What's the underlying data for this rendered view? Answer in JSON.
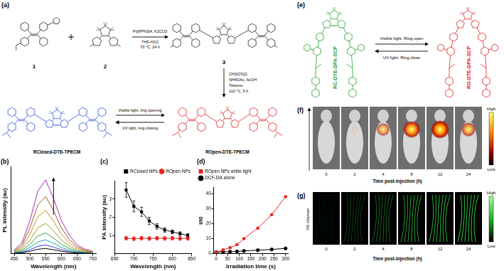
{
  "panels": {
    "a": {
      "label": "(a)",
      "compounds": [
        "1",
        "2",
        "3"
      ],
      "step1": {
        "above": [
          "Pd(PPh3)4, K2CO3"
        ],
        "below": [
          "THF-H2O",
          "70 °C, 24 h"
        ]
      },
      "step2": [
        "CH2(CN)2,",
        "NH4OAc, AcOH",
        "Toluene",
        "110 °C, 5 h"
      ],
      "closed": "RClosed-DTE-TPECM",
      "open": "ROpen-DTE-TPECM",
      "forward": "Visible light, ring opening",
      "backward": "UV light, ring closing"
    },
    "e": {
      "label": "(e)",
      "closed": "RC-DTE-DPA-SCP",
      "open": "RO-DTE-DPA-SCP",
      "forward": "Visible light, Ring open",
      "backward": "UV light, Ring close"
    },
    "f": {
      "label": "(f)",
      "times": [
        0,
        2,
        4,
        8,
        12,
        24
      ],
      "signal": [
        0,
        0.1,
        0.6,
        0.9,
        1.0,
        0.7
      ],
      "axis_title": "Time post-injection (h)",
      "high": "High",
      "low": "Low"
    },
    "g": {
      "label": "(g)",
      "channel": "PA channel",
      "times": [
        0,
        2,
        4,
        8,
        12,
        24
      ],
      "signal": [
        0.1,
        0.3,
        0.5,
        0.8,
        0.9,
        1.0
      ],
      "axis_title": "Time post-injection (h)",
      "high": "High",
      "low": "Low"
    }
  },
  "chart_data": [
    {
      "title": "(b)",
      "type": "line",
      "x": [
        450,
        475,
        500,
        525,
        550,
        575,
        600,
        625,
        650,
        675,
        700
      ],
      "series": [
        {
          "color": "#000000",
          "values": [
            0.03,
            0.09,
            0.27,
            0.51,
            0.6,
            0.45,
            0.27,
            0.15,
            0.07,
            0.04,
            0.02
          ]
        },
        {
          "color": "#3a3acf",
          "values": [
            0.05,
            0.15,
            0.45,
            0.85,
            1.0,
            0.75,
            0.45,
            0.25,
            0.12,
            0.06,
            0.03
          ]
        },
        {
          "color": "#1aa3a3",
          "values": [
            0.08,
            0.24,
            0.72,
            1.36,
            1.6,
            1.2,
            0.72,
            0.4,
            0.19,
            0.1,
            0.05
          ]
        },
        {
          "color": "#2e9e3e",
          "values": [
            0.12,
            0.36,
            1.08,
            2.04,
            2.4,
            1.8,
            1.08,
            0.6,
            0.29,
            0.14,
            0.07
          ]
        },
        {
          "color": "#8a9a2a",
          "values": [
            0.18,
            0.53,
            1.58,
            2.98,
            3.5,
            2.63,
            1.58,
            0.88,
            0.42,
            0.21,
            0.11
          ]
        },
        {
          "color": "#d08a1a",
          "values": [
            0.25,
            0.75,
            2.25,
            4.25,
            5.0,
            3.75,
            2.25,
            1.25,
            0.6,
            0.3,
            0.15
          ]
        },
        {
          "color": "#9a5a2a",
          "values": [
            0.33,
            0.99,
            2.97,
            5.61,
            6.6,
            4.95,
            2.97,
            1.65,
            0.79,
            0.4,
            0.2
          ]
        },
        {
          "color": "#a02ab0",
          "values": [
            0.43,
            1.28,
            3.83,
            7.23,
            8.5,
            6.38,
            3.83,
            2.13,
            1.02,
            0.51,
            0.26
          ]
        }
      ],
      "marker": "none",
      "xlim": [
        440,
        710
      ],
      "xticks": [
        450,
        500,
        550,
        600,
        650,
        700
      ],
      "ylim": [
        0,
        10
      ],
      "x_label": "Wavelength (nm)",
      "y_label": "PL intensity (au)",
      "tick_labels": "x",
      "grid": false
    },
    {
      "title": "(c)",
      "type": "line",
      "x": [
        680,
        700,
        720,
        740,
        760,
        780,
        800,
        820,
        840
      ],
      "series": [
        {
          "name": "RClosed NPs",
          "color": "#000000",
          "marker": "square",
          "values": [
            3.5,
            2.6,
            2.3,
            1.8,
            1.5,
            1.3,
            1.2,
            1.1,
            1.0
          ],
          "errors": [
            0.4,
            0.3,
            0.25,
            0.2,
            0.15,
            0.12,
            0.1,
            0.1,
            0.1
          ]
        },
        {
          "name": "ROpen NPs",
          "color": "#e8251f",
          "marker": "circle",
          "values": [
            0.85,
            0.82,
            0.85,
            0.83,
            0.85,
            0.84,
            0.85,
            0.83,
            0.84
          ],
          "errors": [
            0.1,
            0.1,
            0.1,
            0.1,
            0.1,
            0.1,
            0.1,
            0.1,
            0.1
          ]
        }
      ],
      "xlim": [
        650,
        850
      ],
      "xticks": [
        650,
        700,
        750,
        800,
        850
      ],
      "ylim": [
        0,
        4
      ],
      "yticks": [
        1,
        2,
        3
      ],
      "x_label": "Wavelength (nm)",
      "y_label": "PA intensity (au)",
      "legend": "upper right",
      "grid": false
    },
    {
      "title": "(d)",
      "type": "line",
      "x": [
        0,
        30,
        60,
        90,
        120,
        180,
        240,
        300
      ],
      "series": [
        {
          "name": "ROpen NPs white light",
          "color": "#e8251f",
          "marker": "square",
          "values": [
            1,
            2.5,
            4,
            6,
            10,
            17,
            26,
            38
          ]
        },
        {
          "name": "DCF-DA alone",
          "color": "#000000",
          "marker": "circle",
          "values": [
            1,
            1.2,
            1.3,
            1.5,
            1.8,
            2.3,
            2.8,
            3.5
          ]
        }
      ],
      "xlim": [
        -10,
        310
      ],
      "xticks": [
        0,
        50,
        100,
        150,
        200,
        250,
        300
      ],
      "ylim": [
        0,
        44
      ],
      "yticks": [
        0,
        10,
        20,
        30,
        40
      ],
      "x_label": "Irradiation time (s)",
      "y_label": "I/I0",
      "legend": "upper left",
      "grid": false
    }
  ]
}
